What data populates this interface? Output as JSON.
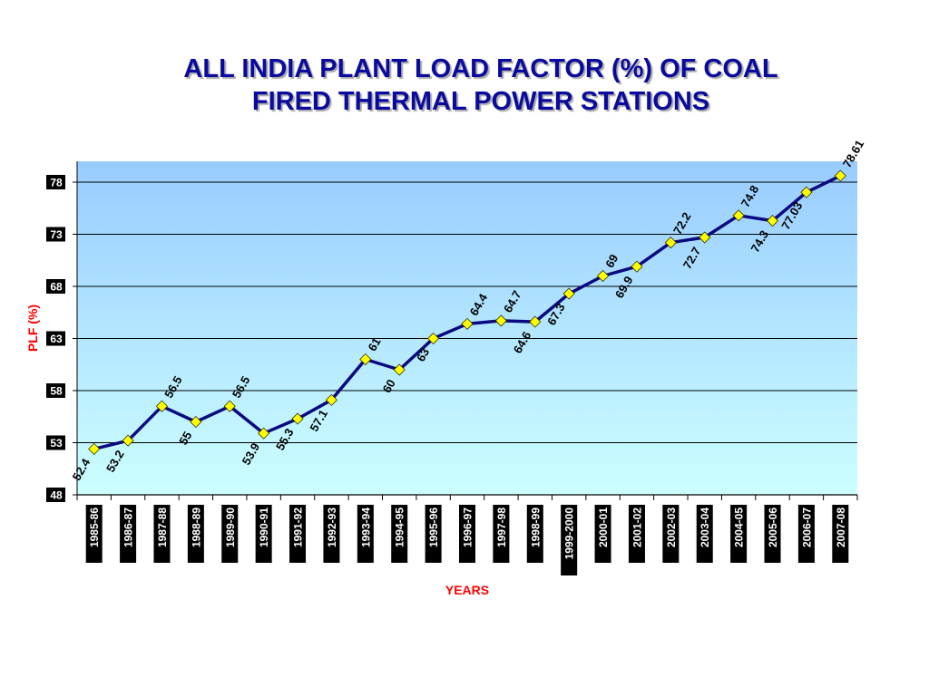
{
  "page": {
    "title_line1": "ALL INDIA PLANT LOAD FACTOR (%) OF COAL",
    "title_line2": "FIRED THERMAL POWER STATIONS"
  },
  "chart_data": {
    "type": "line",
    "title": "ALL INDIA PLANT LOAD FACTOR (%) OF COAL FIRED THERMAL POWER STATIONS",
    "xlabel": "YEARS",
    "ylabel": "PLF (%)",
    "ylim": [
      48,
      80
    ],
    "yticks": [
      48,
      53,
      58,
      63,
      68,
      73,
      78
    ],
    "grid": true,
    "legend": "none",
    "categories": [
      "1985-86",
      "1986-87",
      "1987-88",
      "1988-89",
      "1989-90",
      "1990-91",
      "1991-92",
      "1992-93",
      "1993-94",
      "1994-95",
      "1995-96",
      "1996-97",
      "1997-98",
      "1998-99",
      "1999-2000",
      "2000-01",
      "2001-02",
      "2002-03",
      "2003-04",
      "2004-05",
      "2005-06",
      "2006-07",
      "2007-08"
    ],
    "values": [
      52.4,
      53.2,
      56.5,
      55,
      56.5,
      53.9,
      55.3,
      57.1,
      61,
      60,
      63,
      64.4,
      64.7,
      64.6,
      67.3,
      69,
      69.9,
      72.2,
      72.7,
      74.8,
      74.3,
      77.03,
      78.61
    ],
    "data_labels": [
      "52.4",
      "53.2",
      "56.5",
      "55",
      "56.5",
      "53.9",
      "55.3",
      "57.1",
      "61",
      "60",
      "63",
      "64.4",
      "64.7",
      "64.6",
      "67.3",
      "69",
      "69.9",
      "72.2",
      "72.7",
      "74.8",
      "74.3",
      "77.03",
      "78.61"
    ],
    "colors": {
      "line": "#0a0a80",
      "marker": "#ffff00",
      "axis_label": "#ff0000",
      "bg_top": "#99ccff",
      "bg_bottom": "#ccffff"
    }
  }
}
